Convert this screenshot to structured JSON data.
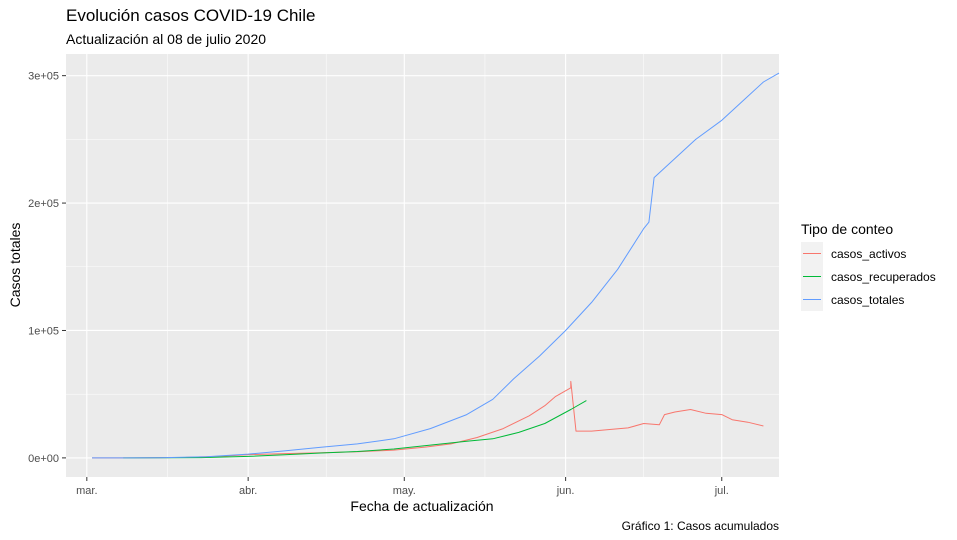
{
  "chart_data": {
    "type": "line",
    "title": "Evolución casos COVID-19 Chile",
    "subtitle": "Actualización al 08 de julio 2020",
    "caption": "Gráfico 1: Casos acumulados",
    "xlabel": "Fecha de actualización",
    "ylabel": "Casos totales",
    "x_ticks": [
      {
        "date": "2020-03-01",
        "label": "mar."
      },
      {
        "date": "2020-04-01",
        "label": "abr."
      },
      {
        "date": "2020-05-01",
        "label": "may."
      },
      {
        "date": "2020-06-01",
        "label": "jun."
      },
      {
        "date": "2020-07-01",
        "label": "jul."
      }
    ],
    "y_ticks": [
      {
        "value": 0,
        "label": "0e+00"
      },
      {
        "value": 100000,
        "label": "1e+05"
      },
      {
        "value": 200000,
        "label": "2e+05"
      },
      {
        "value": 300000,
        "label": "3e+05"
      }
    ],
    "xlim": [
      "2020-02-26",
      "2020-07-12"
    ],
    "ylim": [
      -15000,
      317000
    ],
    "grid": true,
    "legend_position": "right",
    "legend_title": "Tipo de conteo",
    "series": [
      {
        "name": "casos_activos",
        "color": "#F8766D",
        "points": [
          [
            "2020-03-02",
            0
          ],
          [
            "2020-03-10",
            14
          ],
          [
            "2020-03-20",
            400
          ],
          [
            "2020-03-27",
            1300
          ],
          [
            "2020-04-01",
            2600
          ],
          [
            "2020-04-08",
            3400
          ],
          [
            "2020-04-15",
            4100
          ],
          [
            "2020-04-22",
            4800
          ],
          [
            "2020-04-29",
            6100
          ],
          [
            "2020-05-05",
            8500
          ],
          [
            "2020-05-10",
            11000
          ],
          [
            "2020-05-15",
            16000
          ],
          [
            "2020-05-20",
            23000
          ],
          [
            "2020-05-25",
            33000
          ],
          [
            "2020-05-28",
            41000
          ],
          [
            "2020-05-30",
            48000
          ],
          [
            "2020-06-02",
            55000
          ],
          [
            "2020-06-02",
            60000
          ],
          [
            "2020-06-03",
            21000
          ],
          [
            "2020-06-06",
            21000
          ],
          [
            "2020-06-10",
            22500
          ],
          [
            "2020-06-13",
            23500
          ],
          [
            "2020-06-16",
            27000
          ],
          [
            "2020-06-19",
            26000
          ],
          [
            "2020-06-20",
            34000
          ],
          [
            "2020-06-22",
            36000
          ],
          [
            "2020-06-25",
            38000
          ],
          [
            "2020-06-28",
            35000
          ],
          [
            "2020-07-01",
            34000
          ],
          [
            "2020-07-03",
            30000
          ],
          [
            "2020-07-06",
            28000
          ],
          [
            "2020-07-09",
            25000
          ]
        ]
      },
      {
        "name": "casos_recuperados",
        "color": "#00BA38",
        "points": [
          [
            "2020-03-08",
            0
          ],
          [
            "2020-03-23",
            200
          ],
          [
            "2020-04-01",
            1200
          ],
          [
            "2020-04-08",
            2500
          ],
          [
            "2020-04-15",
            3800
          ],
          [
            "2020-04-22",
            5000
          ],
          [
            "2020-04-29",
            7000
          ],
          [
            "2020-05-06",
            10000
          ],
          [
            "2020-05-13",
            13000
          ],
          [
            "2020-05-18",
            15000
          ],
          [
            "2020-05-23",
            20000
          ],
          [
            "2020-05-28",
            27000
          ],
          [
            "2020-06-02",
            38000
          ],
          [
            "2020-06-05",
            45000
          ]
        ]
      },
      {
        "name": "casos_totales",
        "color": "#619CFF",
        "points": [
          [
            "2020-03-02",
            0
          ],
          [
            "2020-03-15",
            70
          ],
          [
            "2020-03-24",
            900
          ],
          [
            "2020-04-01",
            3000
          ],
          [
            "2020-04-08",
            5500
          ],
          [
            "2020-04-15",
            8300
          ],
          [
            "2020-04-22",
            11000
          ],
          [
            "2020-04-29",
            15000
          ],
          [
            "2020-05-06",
            23000
          ],
          [
            "2020-05-13",
            34000
          ],
          [
            "2020-05-18",
            46000
          ],
          [
            "2020-05-22",
            62000
          ],
          [
            "2020-05-27",
            80000
          ],
          [
            "2020-06-01",
            100000
          ],
          [
            "2020-06-06",
            122000
          ],
          [
            "2020-06-11",
            148000
          ],
          [
            "2020-06-16",
            180000
          ],
          [
            "2020-06-17",
            185000
          ],
          [
            "2020-06-18",
            220000
          ],
          [
            "2020-06-22",
            235000
          ],
          [
            "2020-06-26",
            250000
          ],
          [
            "2020-07-01",
            265000
          ],
          [
            "2020-07-05",
            280000
          ],
          [
            "2020-07-09",
            295000
          ],
          [
            "2020-07-12",
            302000
          ]
        ]
      }
    ]
  }
}
